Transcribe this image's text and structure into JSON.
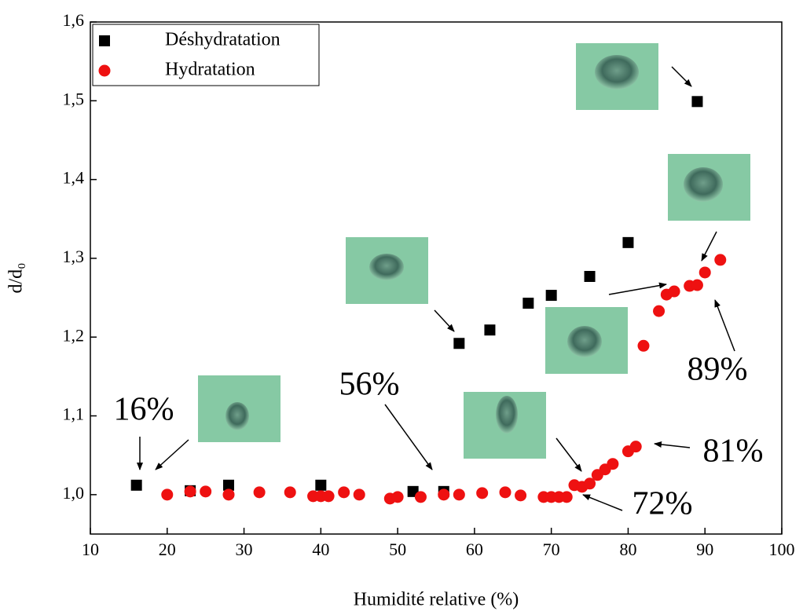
{
  "chart_data": {
    "type": "scatter",
    "xlabel": "Humidité relative (%)",
    "ylabel": "d/d₀",
    "xlim": [
      10,
      100
    ],
    "xticks": [
      10,
      20,
      30,
      40,
      50,
      60,
      70,
      80,
      90,
      100
    ],
    "ylim": [
      0.95,
      1.6
    ],
    "yticks": [
      {
        "value": 1.0,
        "label": "1,0"
      },
      {
        "value": 1.1,
        "label": "1,1"
      },
      {
        "value": 1.2,
        "label": "1,2"
      },
      {
        "value": 1.3,
        "label": "1,3"
      },
      {
        "value": 1.4,
        "label": "1,4"
      },
      {
        "value": 1.5,
        "label": "1,5"
      },
      {
        "value": 1.6,
        "label": "1,6"
      }
    ],
    "legend": "upper left",
    "series": [
      {
        "name": "Déshydratation",
        "color": "#000000",
        "marker": "square",
        "x": [
          16,
          23,
          28,
          40,
          52,
          56,
          58,
          62,
          67,
          70,
          75,
          80,
          89
        ],
        "values": [
          1.012,
          1.005,
          1.012,
          1.012,
          1.004,
          1.004,
          1.192,
          1.209,
          1.243,
          1.253,
          1.277,
          1.32,
          1.499
        ]
      },
      {
        "name": "Hydratation",
        "color": "#ee1111",
        "marker": "circle",
        "x": [
          20,
          23,
          25,
          28,
          32,
          36,
          39,
          40,
          41,
          43,
          45,
          49,
          50,
          53,
          56,
          58,
          61,
          64,
          66,
          69,
          70,
          71,
          72,
          73,
          74,
          75,
          76,
          77,
          78,
          80,
          81,
          82,
          84,
          85,
          86,
          88,
          89,
          90,
          92
        ],
        "values": [
          1.0,
          1.004,
          1.004,
          1.0,
          1.003,
          1.003,
          0.998,
          0.998,
          0.998,
          1.003,
          1.0,
          0.995,
          0.997,
          0.997,
          1.0,
          1.0,
          1.002,
          1.003,
          0.999,
          0.997,
          0.997,
          0.997,
          0.997,
          1.012,
          1.01,
          1.014,
          1.025,
          1.032,
          1.039,
          1.055,
          1.061,
          1.189,
          1.233,
          1.254,
          1.258,
          1.265,
          1.266,
          1.282,
          1.298
        ]
      }
    ],
    "annotations": [
      "16%",
      "56%",
      "72%",
      "81%",
      "89%"
    ]
  }
}
